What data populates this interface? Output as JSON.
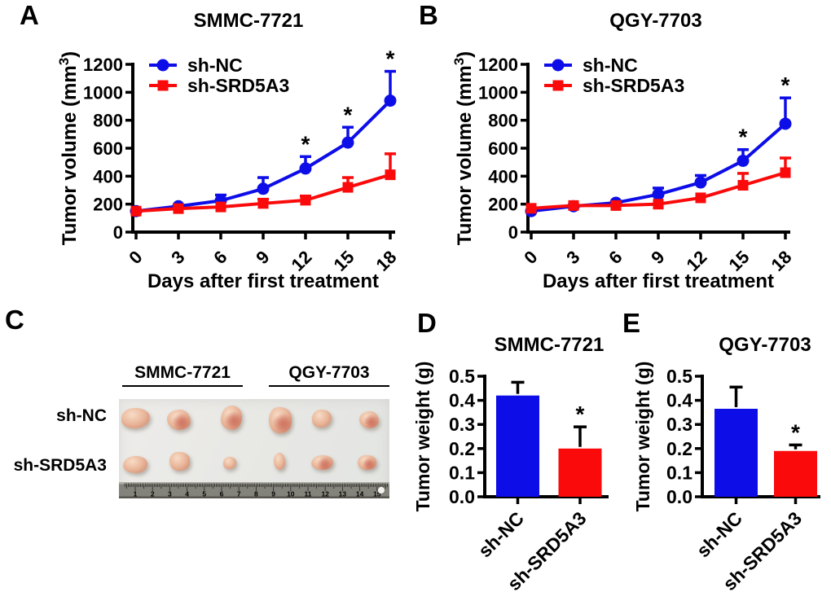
{
  "panels": {
    "a": "A",
    "b": "B",
    "c": "C",
    "d": "D",
    "e": "E"
  },
  "colors": {
    "sh_nc": "#0d0de8",
    "sh_srd5a3": "#fa0a0a",
    "axis": "#000000",
    "photo_background": "#e9e8e5",
    "ruler_metal": "#84837b"
  },
  "panel_c": {
    "column_labels": [
      "SMMC-7721",
      "QGY-7703"
    ],
    "row_labels": [
      "sh-NC",
      "sh-SRD5A3"
    ],
    "ruler_numbers": [
      "1",
      "2",
      "3",
      "4",
      "5",
      "6",
      "7",
      "8",
      "9",
      "10",
      "11",
      "12",
      "13",
      "14",
      "15"
    ]
  },
  "chart_data": [
    {
      "id": "a",
      "type": "line",
      "title": "SMMC-7721",
      "xlabel": "Days after first treatment",
      "ylabel": "Tumor volume (mm³)",
      "x": [
        0,
        3,
        6,
        9,
        12,
        15,
        18
      ],
      "ylim": [
        0,
        1200
      ],
      "ytick_step": 200,
      "grid": false,
      "legend_position": "top-left",
      "sig_symbol": "*",
      "series": [
        {
          "name": "sh-NC",
          "color": "#0d0de8",
          "marker": "circle",
          "values": [
            150,
            185,
            225,
            310,
            455,
            640,
            940
          ],
          "errors_up": [
            0,
            0,
            40,
            80,
            85,
            110,
            210
          ],
          "sig_x": [
            12,
            15,
            18
          ]
        },
        {
          "name": "sh-SRD5A3",
          "color": "#fa0a0a",
          "marker": "square",
          "values": [
            150,
            168,
            180,
            205,
            228,
            320,
            410
          ],
          "errors_up": [
            0,
            0,
            0,
            30,
            30,
            70,
            150
          ],
          "sig_x": []
        }
      ]
    },
    {
      "id": "b",
      "type": "line",
      "title": "QGY-7703",
      "xlabel": "Days after first treatment",
      "ylabel": "Tumor volume (mm³)",
      "x": [
        0,
        3,
        6,
        9,
        12,
        15,
        18
      ],
      "ylim": [
        0,
        1200
      ],
      "ytick_step": 200,
      "grid": false,
      "legend_position": "top-left",
      "sig_symbol": "*",
      "series": [
        {
          "name": "sh-NC",
          "color": "#0d0de8",
          "marker": "circle",
          "values": [
            150,
            185,
            210,
            270,
            355,
            510,
            775
          ],
          "errors_up": [
            0,
            0,
            0,
            45,
            50,
            80,
            185
          ],
          "sig_x": [
            15,
            18
          ]
        },
        {
          "name": "sh-SRD5A3",
          "color": "#fa0a0a",
          "marker": "square",
          "values": [
            170,
            190,
            190,
            200,
            245,
            335,
            425
          ],
          "errors_up": [
            0,
            0,
            0,
            0,
            0,
            85,
            105
          ],
          "sig_x": []
        }
      ]
    },
    {
      "id": "d",
      "type": "bar",
      "title": "SMMC-7721",
      "ylabel": "Tumor weight (g)",
      "ylim": [
        0,
        0.5
      ],
      "ytick_step": 0.1,
      "ytick_decimals": 1,
      "sig_symbol": "*",
      "bars": [
        {
          "label": "sh-NC",
          "color": "#0d0de8",
          "value": 0.42,
          "error_up": 0.055,
          "sig": false
        },
        {
          "label": "sh-SRD5A3",
          "color": "#fa0a0a",
          "value": 0.2,
          "error_up": 0.09,
          "sig": true
        }
      ]
    },
    {
      "id": "e",
      "type": "bar",
      "title": "QGY-7703",
      "ylabel": "Tumor weight (g)",
      "ylim": [
        0,
        0.5
      ],
      "ytick_step": 0.1,
      "ytick_decimals": 1,
      "sig_symbol": "*",
      "bars": [
        {
          "label": "sh-NC",
          "color": "#0d0de8",
          "value": 0.365,
          "error_up": 0.09,
          "sig": false
        },
        {
          "label": "sh-SRD5A3",
          "color": "#fa0a0a",
          "value": 0.19,
          "error_up": 0.025,
          "sig": true
        }
      ]
    }
  ]
}
